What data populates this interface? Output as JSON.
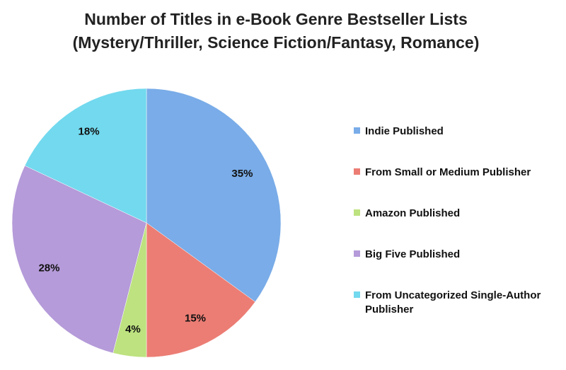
{
  "chart_data": {
    "type": "pie",
    "title": "Number of Titles in e-Book Genre Bestseller Lists",
    "subtitle": "(Mystery/Thriller, Science Fiction/Fantasy, Romance)",
    "categories": [
      "Indie Published",
      "From Small or Medium Publisher",
      "Amazon Published",
      "Big Five Published",
      "From Uncategorized Single-Author Publisher"
    ],
    "values": [
      35,
      15,
      4,
      28,
      18
    ],
    "value_labels": [
      "35%",
      "15%",
      "4%",
      "28%",
      "18%"
    ],
    "colors": [
      "#79ace8",
      "#ec7d74",
      "#bde27f",
      "#b59bd9",
      "#72d9ee"
    ],
    "legend": "right"
  }
}
